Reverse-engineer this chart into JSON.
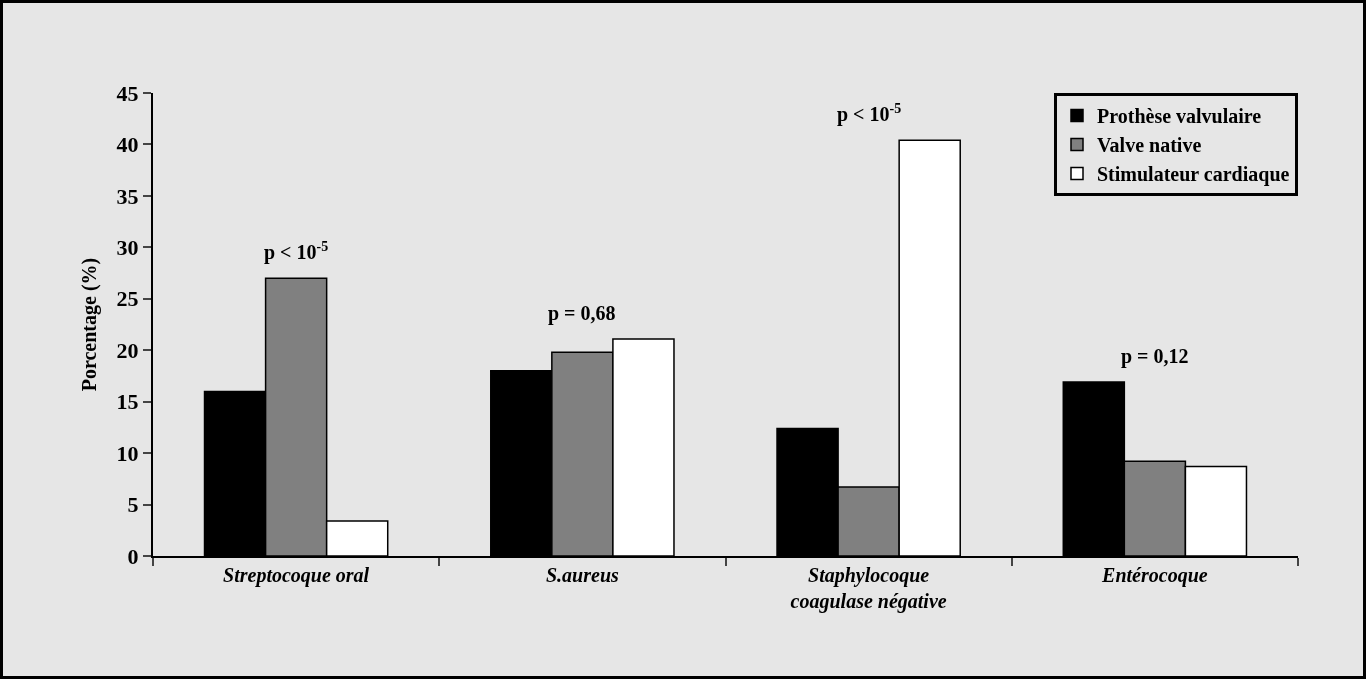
{
  "chart_data": {
    "type": "bar",
    "ylabel": "Porcentage (%)",
    "categories": [
      "Streptocoque oral",
      "S.aureus",
      "Staphylocoque\ncoagulase négative",
      "Entérocoque"
    ],
    "series": [
      {
        "name": "Prothèse valvulaire",
        "color": "#000000",
        "values": [
          16,
          18,
          12.4,
          16.9
        ]
      },
      {
        "name": "Valve native",
        "color": "#808080",
        "values": [
          27,
          19.8,
          6.7,
          9.2
        ]
      },
      {
        "name": "Stimulateur cardiaque",
        "color": "#ffffff",
        "values": [
          3.4,
          21.1,
          40.4,
          8.7
        ]
      }
    ],
    "annotations": [
      "p < 10$^{-5}$",
      "p = 0,68",
      "p < 10$^{-5}$",
      "p = 0,12"
    ],
    "ylim": [
      0,
      45
    ],
    "yticks": [
      0,
      5,
      10,
      15,
      20,
      25,
      30,
      35,
      40,
      45
    ],
    "grid": false,
    "legend": "top right"
  }
}
